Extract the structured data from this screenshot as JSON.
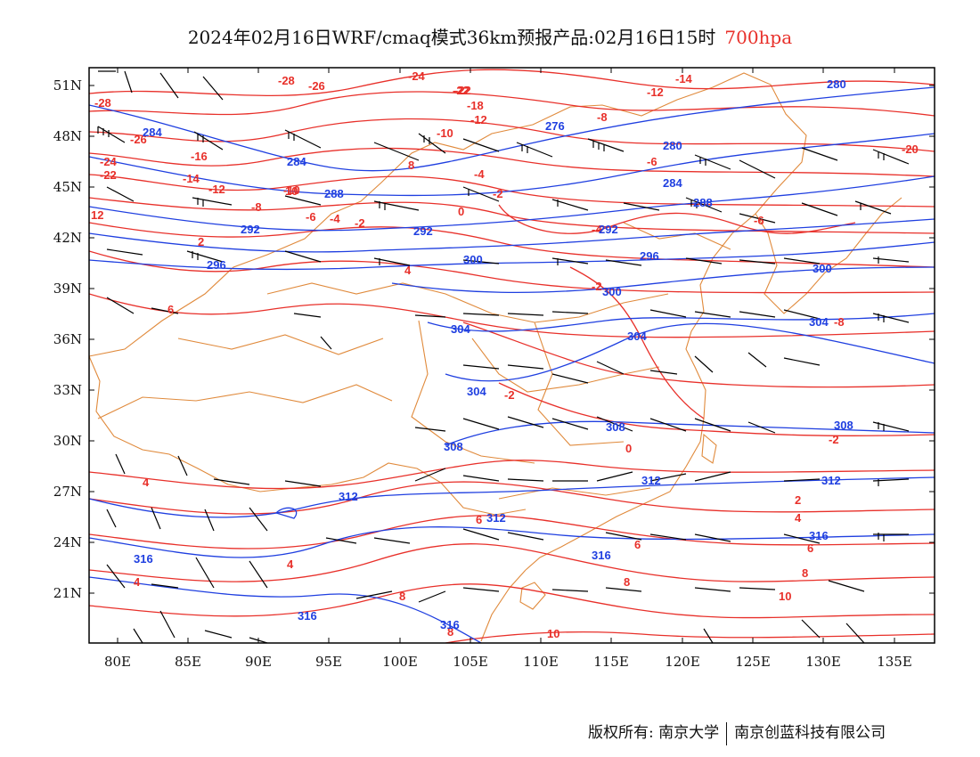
{
  "header": {
    "title": "2024年02月16日WRF/cmaq模式36km预报产品:02月16日15时",
    "level": "700hpa"
  },
  "colors": {
    "temperature": "#e8302a",
    "geopotential": "#1f3fe0",
    "wind": "#000000",
    "boundary": "#e08a3c"
  },
  "axes": {
    "lon_labels": [
      "80E",
      "85E",
      "90E",
      "95E",
      "100E",
      "105E",
      "110E",
      "115E",
      "120E",
      "125E",
      "130E",
      "135E"
    ],
    "lat_labels": [
      "51N",
      "48N",
      "45N",
      "42N",
      "39N",
      "36N",
      "33N",
      "30N",
      "27N",
      "24N",
      "21N"
    ]
  },
  "temp_labels": [
    "-28",
    "-26",
    "-28",
    "-24",
    "-22",
    "-26",
    "-24",
    "-22",
    "-16",
    "-14",
    "-12",
    "-10",
    "-8",
    "-6",
    "-4",
    "-2",
    "0",
    "-22",
    "-18",
    "-10",
    "-12",
    "-14",
    "-12",
    "-8",
    "-6",
    "-4",
    "-2",
    "2",
    "4",
    "6",
    "8",
    "10",
    "-8",
    "-6",
    "-2",
    "-4",
    "-2",
    "-20",
    "12",
    "0",
    "-2",
    "4",
    "4",
    "4",
    "6",
    "8",
    "8",
    "10",
    "6",
    "2",
    "4",
    "6",
    "8",
    "10",
    "8"
  ],
  "height_labels": [
    "284",
    "284",
    "288",
    "292",
    "296",
    "276",
    "280",
    "284",
    "288",
    "292",
    "292",
    "296",
    "300",
    "300",
    "304",
    "304",
    "304",
    "308",
    "308",
    "312",
    "312",
    "312",
    "316",
    "316",
    "316",
    "316",
    "280",
    "300",
    "304",
    "308",
    "312",
    "316"
  ],
  "footer": {
    "copyright": "版权所有: 南京大学",
    "company": "南京创蓝科技有限公司"
  }
}
